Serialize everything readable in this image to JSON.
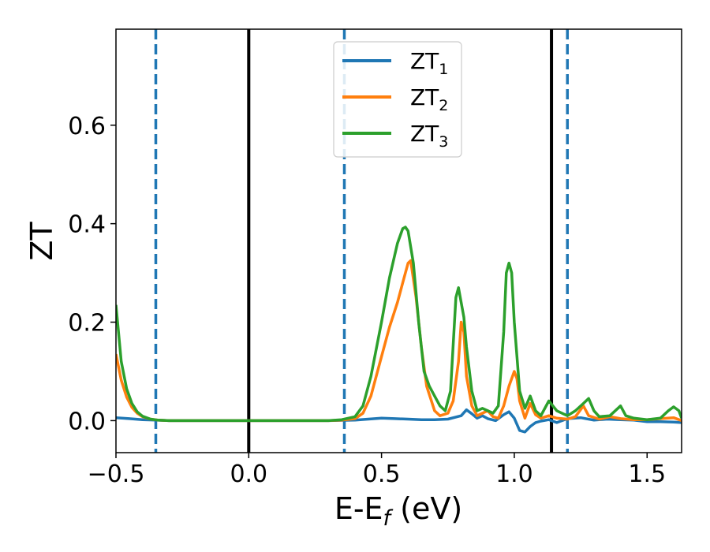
{
  "chart_data": {
    "type": "line",
    "xlabel": {
      "main": "E-E",
      "sub": "f",
      "suffix": " (eV)"
    },
    "ylabel": "ZT",
    "xlim": [
      -0.5,
      1.63
    ],
    "ylim": [
      -0.065,
      0.795
    ],
    "x_ticks": [
      {
        "value": -0.5,
        "label": "−0.5"
      },
      {
        "value": 0.0,
        "label": "0.0"
      },
      {
        "value": 0.5,
        "label": "0.5"
      },
      {
        "value": 1.0,
        "label": "1.0"
      },
      {
        "value": 1.5,
        "label": "1.5"
      }
    ],
    "y_ticks": [
      {
        "value": 0.0,
        "label": "0.0"
      },
      {
        "value": 0.2,
        "label": "0.2"
      },
      {
        "value": 0.4,
        "label": "0.4"
      },
      {
        "value": 0.6,
        "label": "0.6"
      }
    ],
    "grid": false,
    "legend_position": "top-center",
    "vertical_lines": [
      {
        "x": -0.35,
        "style": "dashed",
        "color": "#1f77b4"
      },
      {
        "x": 0.0,
        "style": "solid",
        "color": "#000000"
      },
      {
        "x": 0.36,
        "style": "dashed",
        "color": "#1f77b4"
      },
      {
        "x": 1.14,
        "style": "solid",
        "color": "#000000"
      },
      {
        "x": 1.2,
        "style": "dashed",
        "color": "#1f77b4"
      }
    ],
    "series": [
      {
        "name": "ZT",
        "sub": "1",
        "color": "#1f77b4",
        "points": [
          [
            -0.5,
            0.006
          ],
          [
            -0.45,
            0.004
          ],
          [
            -0.4,
            0.002
          ],
          [
            -0.35,
            0.001
          ],
          [
            -0.3,
            0.0
          ],
          [
            0.0,
            0.0
          ],
          [
            0.3,
            0.0
          ],
          [
            0.4,
            0.001
          ],
          [
            0.45,
            0.003
          ],
          [
            0.5,
            0.005
          ],
          [
            0.55,
            0.004
          ],
          [
            0.6,
            0.003
          ],
          [
            0.65,
            0.002
          ],
          [
            0.7,
            0.002
          ],
          [
            0.75,
            0.003
          ],
          [
            0.8,
            0.01
          ],
          [
            0.82,
            0.022
          ],
          [
            0.84,
            0.014
          ],
          [
            0.86,
            0.005
          ],
          [
            0.88,
            0.01
          ],
          [
            0.9,
            0.004
          ],
          [
            0.93,
            0.0
          ],
          [
            0.96,
            0.012
          ],
          [
            0.98,
            0.018
          ],
          [
            1.0,
            0.005
          ],
          [
            1.02,
            -0.02
          ],
          [
            1.04,
            -0.023
          ],
          [
            1.06,
            -0.012
          ],
          [
            1.08,
            -0.004
          ],
          [
            1.1,
            -0.001
          ],
          [
            1.13,
            0.002
          ],
          [
            1.16,
            -0.004
          ],
          [
            1.2,
            0.004
          ],
          [
            1.25,
            0.006
          ],
          [
            1.3,
            0.001
          ],
          [
            1.35,
            0.003
          ],
          [
            1.4,
            0.002
          ],
          [
            1.45,
            0.001
          ],
          [
            1.5,
            -0.002
          ],
          [
            1.55,
            -0.002
          ],
          [
            1.6,
            -0.003
          ],
          [
            1.63,
            -0.004
          ]
        ]
      },
      {
        "name": "ZT",
        "sub": "2",
        "color": "#ff7f0e",
        "points": [
          [
            -0.5,
            0.135
          ],
          [
            -0.48,
            0.082
          ],
          [
            -0.46,
            0.048
          ],
          [
            -0.44,
            0.027
          ],
          [
            -0.42,
            0.015
          ],
          [
            -0.4,
            0.008
          ],
          [
            -0.37,
            0.003
          ],
          [
            -0.34,
            0.001
          ],
          [
            -0.3,
            0.0
          ],
          [
            0.0,
            0.0
          ],
          [
            0.3,
            0.0
          ],
          [
            0.35,
            0.001
          ],
          [
            0.4,
            0.004
          ],
          [
            0.43,
            0.015
          ],
          [
            0.46,
            0.05
          ],
          [
            0.5,
            0.13
          ],
          [
            0.53,
            0.19
          ],
          [
            0.56,
            0.24
          ],
          [
            0.58,
            0.28
          ],
          [
            0.6,
            0.32
          ],
          [
            0.61,
            0.325
          ],
          [
            0.63,
            0.25
          ],
          [
            0.65,
            0.15
          ],
          [
            0.67,
            0.07
          ],
          [
            0.7,
            0.02
          ],
          [
            0.72,
            0.01
          ],
          [
            0.75,
            0.015
          ],
          [
            0.77,
            0.04
          ],
          [
            0.79,
            0.12
          ],
          [
            0.8,
            0.2
          ],
          [
            0.81,
            0.18
          ],
          [
            0.82,
            0.09
          ],
          [
            0.84,
            0.03
          ],
          [
            0.86,
            0.01
          ],
          [
            0.88,
            0.015
          ],
          [
            0.9,
            0.02
          ],
          [
            0.92,
            0.008
          ],
          [
            0.94,
            0.005
          ],
          [
            0.96,
            0.03
          ],
          [
            0.98,
            0.07
          ],
          [
            1.0,
            0.1
          ],
          [
            1.01,
            0.085
          ],
          [
            1.02,
            0.04
          ],
          [
            1.04,
            0.005
          ],
          [
            1.06,
            0.035
          ],
          [
            1.08,
            0.012
          ],
          [
            1.1,
            0.005
          ],
          [
            1.13,
            0.01
          ],
          [
            1.16,
            0.005
          ],
          [
            1.2,
            0.003
          ],
          [
            1.23,
            0.008
          ],
          [
            1.26,
            0.03
          ],
          [
            1.28,
            0.01
          ],
          [
            1.32,
            0.003
          ],
          [
            1.36,
            0.008
          ],
          [
            1.4,
            0.004
          ],
          [
            1.45,
            0.002
          ],
          [
            1.5,
            0.002
          ],
          [
            1.55,
            0.004
          ],
          [
            1.6,
            0.006
          ],
          [
            1.63,
            0.0
          ]
        ]
      },
      {
        "name": "ZT",
        "sub": "3",
        "color": "#2ca02c",
        "points": [
          [
            -0.5,
            0.235
          ],
          [
            -0.48,
            0.12
          ],
          [
            -0.46,
            0.065
          ],
          [
            -0.44,
            0.035
          ],
          [
            -0.42,
            0.018
          ],
          [
            -0.4,
            0.009
          ],
          [
            -0.37,
            0.003
          ],
          [
            -0.34,
            0.001
          ],
          [
            -0.3,
            0.0
          ],
          [
            0.0,
            0.0
          ],
          [
            0.3,
            0.0
          ],
          [
            0.35,
            0.002
          ],
          [
            0.4,
            0.008
          ],
          [
            0.43,
            0.03
          ],
          [
            0.46,
            0.09
          ],
          [
            0.5,
            0.2
          ],
          [
            0.53,
            0.29
          ],
          [
            0.56,
            0.36
          ],
          [
            0.58,
            0.39
          ],
          [
            0.59,
            0.393
          ],
          [
            0.6,
            0.385
          ],
          [
            0.62,
            0.32
          ],
          [
            0.64,
            0.2
          ],
          [
            0.66,
            0.1
          ],
          [
            0.68,
            0.07
          ],
          [
            0.7,
            0.05
          ],
          [
            0.72,
            0.03
          ],
          [
            0.74,
            0.02
          ],
          [
            0.76,
            0.06
          ],
          [
            0.78,
            0.25
          ],
          [
            0.79,
            0.27
          ],
          [
            0.8,
            0.24
          ],
          [
            0.81,
            0.21
          ],
          [
            0.82,
            0.15
          ],
          [
            0.84,
            0.06
          ],
          [
            0.86,
            0.02
          ],
          [
            0.88,
            0.025
          ],
          [
            0.9,
            0.02
          ],
          [
            0.92,
            0.015
          ],
          [
            0.94,
            0.03
          ],
          [
            0.96,
            0.18
          ],
          [
            0.97,
            0.3
          ],
          [
            0.98,
            0.32
          ],
          [
            0.99,
            0.3
          ],
          [
            1.0,
            0.2
          ],
          [
            1.02,
            0.06
          ],
          [
            1.04,
            0.025
          ],
          [
            1.06,
            0.05
          ],
          [
            1.08,
            0.02
          ],
          [
            1.1,
            0.01
          ],
          [
            1.13,
            0.04
          ],
          [
            1.16,
            0.02
          ],
          [
            1.2,
            0.01
          ],
          [
            1.23,
            0.02
          ],
          [
            1.26,
            0.035
          ],
          [
            1.28,
            0.045
          ],
          [
            1.3,
            0.02
          ],
          [
            1.32,
            0.008
          ],
          [
            1.36,
            0.01
          ],
          [
            1.4,
            0.03
          ],
          [
            1.42,
            0.01
          ],
          [
            1.45,
            0.005
          ],
          [
            1.5,
            0.002
          ],
          [
            1.55,
            0.005
          ],
          [
            1.58,
            0.02
          ],
          [
            1.6,
            0.028
          ],
          [
            1.62,
            0.02
          ],
          [
            1.63,
            0.005
          ]
        ]
      }
    ]
  }
}
